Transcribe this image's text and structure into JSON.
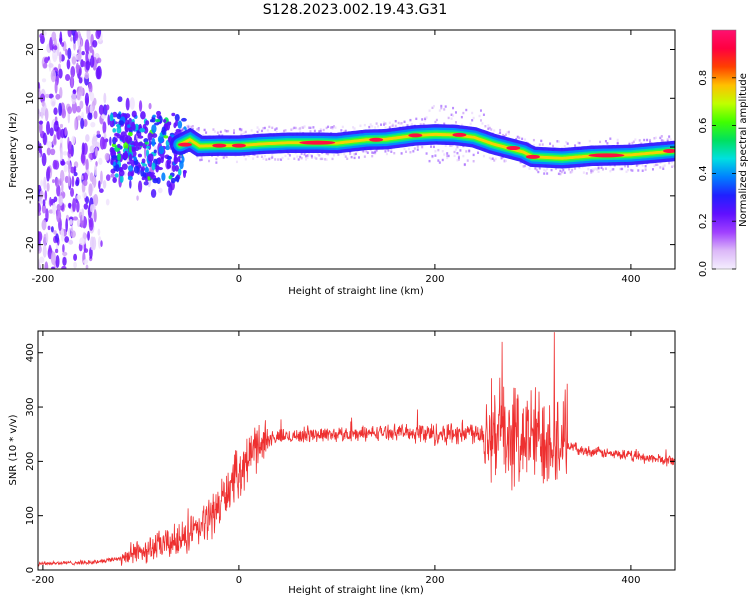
{
  "title": "S128.2023.002.19.43.G31",
  "chart_data": [
    {
      "type": "heatmap",
      "xlabel": "Height of straight line (km)",
      "ylabel": "Frequency (Hz)",
      "xlim": [
        -205,
        445
      ],
      "ylim": [
        -25,
        24
      ],
      "xticks": [
        -200,
        0,
        200,
        400
      ],
      "yticks": [
        -20,
        -10,
        0,
        10,
        20
      ],
      "colorbar": {
        "label": "Normalized spectral amplitude",
        "range": [
          0,
          1
        ],
        "ticks": [
          "0.0",
          "0.2",
          "0.4",
          "0.6",
          "0.8"
        ],
        "colors": [
          "#f4eefe",
          "#dcb8f8",
          "#a040ff",
          "#6010ff",
          "#2020ff",
          "#0080ff",
          "#00e0e0",
          "#00e060",
          "#40ff00",
          "#c0ff00",
          "#ffc000",
          "#ff4000",
          "#ff0040",
          "#ff1070"
        ]
      },
      "ridge": {
        "x": [
          -60,
          -50,
          -40,
          -20,
          0,
          20,
          50,
          80,
          100,
          130,
          150,
          180,
          200,
          220,
          240,
          260,
          275,
          290,
          300,
          330,
          360,
          400,
          445
        ],
        "y": [
          0.5,
          1.5,
          0.2,
          0.3,
          0.3,
          0.6,
          0.9,
          0.9,
          0.8,
          1.5,
          1.6,
          2.4,
          2.6,
          2.5,
          2.0,
          0.6,
          -0.2,
          -1.0,
          -2.0,
          -2.3,
          -1.8,
          -1.6,
          -0.8
        ]
      }
    },
    {
      "type": "line",
      "xlabel": "Height of straight line (km)",
      "ylabel": "SNR (10 * v/v)",
      "xlim": [
        -205,
        445
      ],
      "ylim": [
        0,
        440
      ],
      "xticks": [
        -200,
        0,
        200,
        400
      ],
      "yticks": [
        0,
        100,
        200,
        300,
        400
      ],
      "color": "#ee3030",
      "envelope": {
        "x": [
          -205,
          -150,
          -120,
          -100,
          -80,
          -60,
          -40,
          -20,
          0,
          20,
          40,
          80,
          120,
          160,
          200,
          240,
          260,
          280,
          300,
          320,
          335,
          350,
          400,
          445
        ],
        "y": [
          12,
          14,
          22,
          35,
          45,
          55,
          75,
          120,
          180,
          235,
          245,
          250,
          250,
          255,
          250,
          255,
          250,
          245,
          245,
          250,
          230,
          220,
          210,
          200
        ]
      }
    }
  ]
}
